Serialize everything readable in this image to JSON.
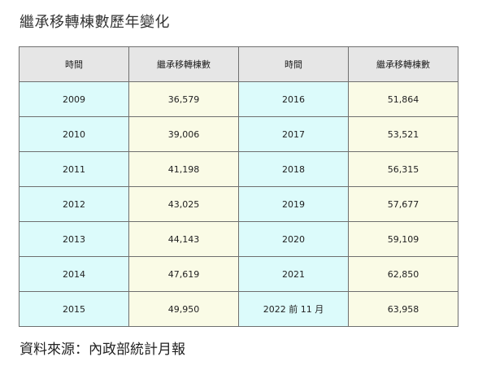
{
  "title": "繼承移轉棟數歷年變化",
  "table": {
    "headers": [
      "時間",
      "繼承移轉棟數",
      "時間",
      "繼承移轉棟數"
    ],
    "rows": [
      {
        "time_a": "2009",
        "value_a": "36,579",
        "time_b": "2016",
        "value_b": "51,864"
      },
      {
        "time_a": "2010",
        "value_a": "39,006",
        "time_b": "2017",
        "value_b": "53,521"
      },
      {
        "time_a": "2011",
        "value_a": "41,198",
        "time_b": "2018",
        "value_b": "56,315"
      },
      {
        "time_a": "2012",
        "value_a": "43,025",
        "time_b": "2019",
        "value_b": "57,677"
      },
      {
        "time_a": "2013",
        "value_a": "44,143",
        "time_b": "2020",
        "value_b": "59,109"
      },
      {
        "time_a": "2014",
        "value_a": "47,619",
        "time_b": "2021",
        "value_b": "62,850"
      },
      {
        "time_a": "2015",
        "value_a": "49,950",
        "time_b": "2022 前 11 月",
        "value_b": "63,958"
      }
    ]
  },
  "source": "資料來源：內政部統計月報",
  "colors": {
    "header_bg": "#e6e6e6",
    "time_cell_bg": "#dcfbfb",
    "value_cell_bg": "#fafbe6",
    "border": "#6f6f6f"
  }
}
